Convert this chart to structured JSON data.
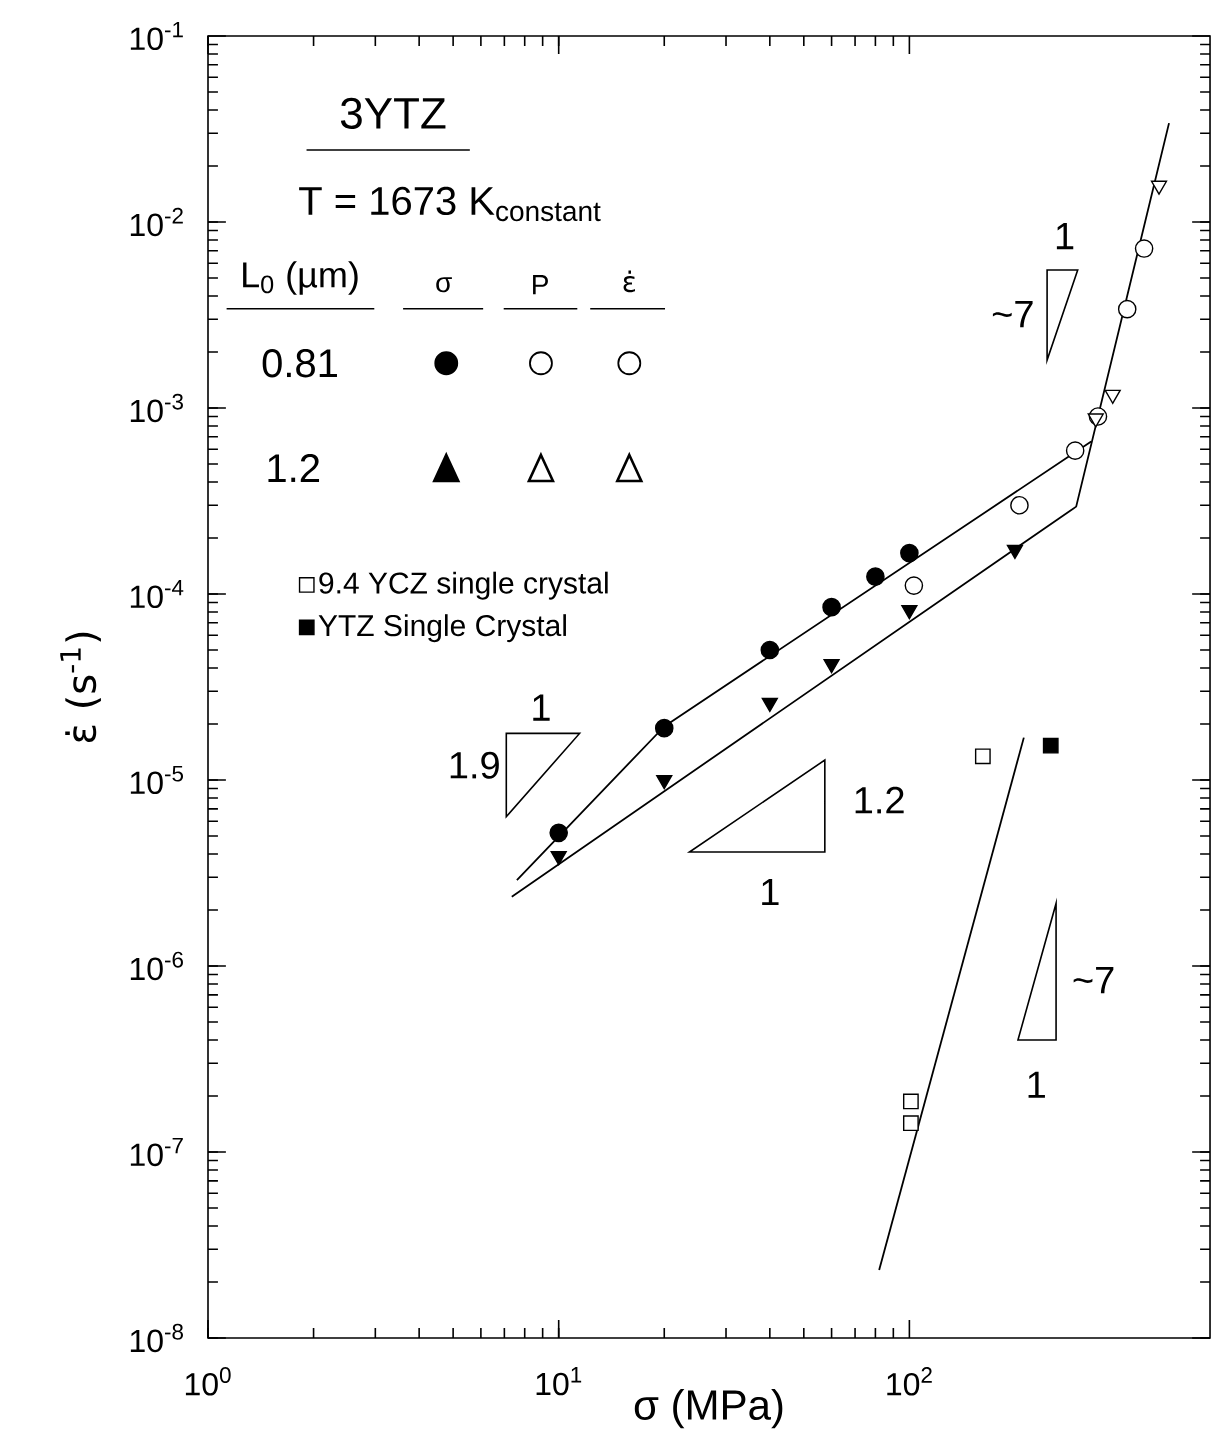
{
  "chart_data": {
    "type": "scatter",
    "xlabel": "σ  (MPa)",
    "ylabel": "ε̇  (s$^{-1}$)",
    "legend_title": "3YTZ",
    "xlim": [
      1,
      720
    ],
    "ylim": [
      1e-08,
      0.1
    ],
    "log": "xy",
    "legend": "top left",
    "xticks": [
      {
        "value": 1,
        "label": "10$^{0}$"
      },
      {
        "value": 10,
        "label": "10$^{1}$"
      },
      {
        "value": 100,
        "label": "10$^{2}$"
      }
    ],
    "yticks": [
      {
        "value": 1e-08,
        "label": "10$^{-8}$"
      },
      {
        "value": 1e-07,
        "label": "10$^{-7}$"
      },
      {
        "value": 1e-06,
        "label": "10$^{-6}$"
      },
      {
        "value": 1e-05,
        "label": "10$^{-5}$"
      },
      {
        "value": 0.0001,
        "label": "10$^{-4}$"
      },
      {
        "value": 0.001,
        "label": "10$^{-3}$"
      },
      {
        "value": 0.01,
        "label": "10$^{-2}$"
      },
      {
        "value": 0.1,
        "label": "10$^{-1}$"
      }
    ],
    "annotations": [
      "T = 1673 K$_{constant}$",
      "L$_{0}$ (µm)",
      "σ",
      "P",
      "ε̇",
      "0.81",
      "1.2",
      "1",
      "1.9",
      "1.2",
      "1",
      "1",
      "~7",
      "~7",
      "1"
    ],
    "series": [
      {
        "marker": "circle",
        "color": "#000000",
        "x": [
          10,
          20,
          40,
          60,
          80,
          100
        ],
        "values": [
          5.2e-06,
          1.9e-05,
          5e-05,
          8.5e-05,
          0.000124,
          0.000166
        ]
      },
      {
        "marker": "triangle",
        "color": "#000000",
        "x": [
          10,
          20,
          40,
          60,
          100,
          200
        ],
        "values": [
          3.9e-06,
          1e-05,
          2.6e-05,
          4.2e-05,
          8.2e-05,
          0.000173
        ]
      },
      {
        "marker": "circle",
        "color": "#ffffff",
        "x": [
          103,
          206,
          297,
          345,
          418,
          467
        ],
        "values": [
          0.000111,
          0.0003,
          0.00059,
          0.0009,
          0.0034,
          0.0072
        ]
      },
      {
        "marker": "triangle",
        "color": "#ffffff",
        "x": [
          340,
          380,
          515
        ],
        "values": [
          0.00088,
          0.00118,
          0.0157
        ]
      },
      {
        "marker": "square",
        "color": "#ffffff",
        "name": "9.4 YCZ single crystal",
        "x": [
          162,
          101,
          101
        ],
        "values": [
          1.34e-05,
          1.87e-07,
          1.43e-07
        ]
      },
      {
        "marker": "square",
        "color": "#000000",
        "name": "YTZ Single Crystal",
        "x": [
          253
        ],
        "values": [
          1.53e-05
        ]
      },
      {
        "type": "line",
        "marker": "none",
        "color": "#000000",
        "x": [
          7.6,
          20,
          330
        ],
        "values": [
          2.9e-06,
          1.94e-05,
          0.00066
        ]
      },
      {
        "type": "line",
        "marker": "none",
        "color": "#000000",
        "x": [
          7.35,
          299,
          550
        ],
        "values": [
          2.36e-06,
          0.000295,
          0.034
        ]
      },
      {
        "type": "line",
        "marker": "none",
        "color": "#000000",
        "x": [
          82,
          212
        ],
        "values": [
          2.32e-08,
          1.69e-05
        ]
      }
    ]
  }
}
